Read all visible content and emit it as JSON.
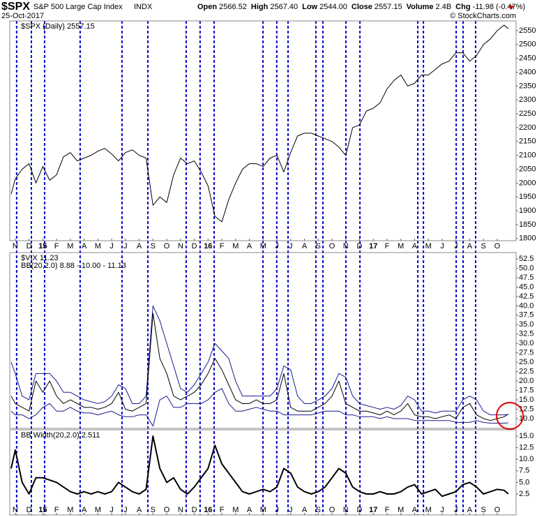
{
  "header": {
    "symbol": "$SPX",
    "name": "S&P 500 Large Cap Index",
    "exchange": "INDX",
    "date": "25-Oct-2017",
    "quote": [
      {
        "label": "Open",
        "value": "2566.52"
      },
      {
        "label": "High",
        "value": "2567.40"
      },
      {
        "label": "Low",
        "value": "2544.00"
      },
      {
        "label": "Close",
        "value": "2557.15"
      },
      {
        "label": "Volume",
        "value": "2.4B"
      },
      {
        "label": "Chg",
        "value": "-11.98 (-0.47%)"
      }
    ],
    "copyright": "© StockCharts.com"
  },
  "chart_data": [
    {
      "type": "line",
      "legend": [
        "$SPX (Daily) 2557.15"
      ],
      "x": [
        -0.3,
        0,
        0.5,
        1,
        1.5,
        2,
        2.5,
        3,
        3.5,
        4,
        4.5,
        5,
        5.5,
        6,
        6.5,
        7,
        7.5,
        8,
        8.5,
        9,
        9.5,
        10,
        10.5,
        11,
        11.5,
        12,
        12.5,
        13,
        13.5,
        14,
        14.5,
        15,
        15.5,
        16,
        16.5,
        17,
        17.5,
        18,
        18.5,
        19,
        19.5,
        20,
        20.5,
        21,
        21.5,
        22,
        22.5,
        23,
        23.5,
        24,
        24.5,
        25,
        25.5,
        26,
        26.5,
        27,
        27.5,
        28,
        28.5,
        29,
        29.5,
        30,
        30.5,
        31,
        31.5,
        32,
        32.5,
        33,
        33.5,
        34,
        34.5,
        35,
        35.5,
        35.8
      ],
      "series": [
        {
          "color": "#000000",
          "linewidth": 1,
          "values": [
            1960,
            2015,
            2050,
            2070,
            2000,
            2060,
            2010,
            2030,
            2095,
            2110,
            2080,
            2090,
            2100,
            2115,
            2125,
            2105,
            2080,
            2110,
            2120,
            2100,
            2090,
            1920,
            1950,
            1930,
            2030,
            2090,
            2070,
            2080,
            2040,
            1990,
            1880,
            1860,
            1940,
            2000,
            2050,
            2070,
            2070,
            2060,
            2090,
            2100,
            2040,
            2110,
            2170,
            2180,
            2180,
            2170,
            2160,
            2150,
            2130,
            2100,
            2200,
            2210,
            2260,
            2270,
            2290,
            2340,
            2370,
            2390,
            2350,
            2360,
            2390,
            2390,
            2410,
            2430,
            2440,
            2470,
            2470,
            2440,
            2460,
            2500,
            2520,
            2550,
            2570,
            2557.15
          ]
        }
      ],
      "xlim": [
        -0.4,
        36.37
      ],
      "ylim": [
        1792,
        2585
      ],
      "xticks": [
        {
          "value": 0,
          "label": "N"
        },
        {
          "value": 1,
          "label": "D"
        },
        {
          "value": 2,
          "label": "15"
        },
        {
          "value": 3,
          "label": "F"
        },
        {
          "value": 4,
          "label": "M"
        },
        {
          "value": 5,
          "label": "A"
        },
        {
          "value": 6,
          "label": "M"
        },
        {
          "value": 7,
          "label": "J"
        },
        {
          "value": 8,
          "label": "J"
        },
        {
          "value": 9,
          "label": "A"
        },
        {
          "value": 10,
          "label": "S"
        },
        {
          "value": 11,
          "label": "O"
        },
        {
          "value": 12,
          "label": "N"
        },
        {
          "value": 13,
          "label": "D"
        },
        {
          "value": 14,
          "label": "16"
        },
        {
          "value": 15,
          "label": "F"
        },
        {
          "value": 16,
          "label": "M"
        },
        {
          "value": 17,
          "label": "A"
        },
        {
          "value": 18,
          "label": "M"
        },
        {
          "value": 19,
          "label": "J"
        },
        {
          "value": 20,
          "label": "J"
        },
        {
          "value": 21,
          "label": "A"
        },
        {
          "value": 22,
          "label": "S"
        },
        {
          "value": 23,
          "label": "O"
        },
        {
          "value": 24,
          "label": "N"
        },
        {
          "value": 25,
          "label": "D"
        },
        {
          "value": 26,
          "label": "17"
        },
        {
          "value": 27,
          "label": "F"
        },
        {
          "value": 28,
          "label": "M"
        },
        {
          "value": 29,
          "label": "A"
        },
        {
          "value": 30,
          "label": "M"
        },
        {
          "value": 31,
          "label": "J"
        },
        {
          "value": 32,
          "label": "J"
        },
        {
          "value": 33,
          "label": "A"
        },
        {
          "value": 34,
          "label": "S"
        },
        {
          "value": 35,
          "label": "O"
        }
      ],
      "yticks": [
        1800,
        1850,
        1900,
        1950,
        2000,
        2050,
        2100,
        2150,
        2200,
        2250,
        2300,
        2350,
        2400,
        2450,
        2500,
        2550
      ],
      "vlines": [
        0.1,
        1.17,
        2.13,
        4.71,
        7.75,
        9.63,
        12.41,
        13.42,
        14.44,
        17.99,
        18.99,
        19.81,
        21.83,
        22.34,
        24.01,
        25.03,
        29.23,
        29.64,
        32.02,
        32.52,
        33.43
      ],
      "vline_color": "#0000cc",
      "grid": false
    },
    {
      "type": "line",
      "legend": [
        "$VIX 11.23",
        "BB(20,2.0) 8.88 - 10.00 - 11.13"
      ],
      "x": [
        -0.3,
        0,
        0.5,
        1,
        1.5,
        2,
        2.5,
        3,
        3.5,
        4,
        4.5,
        5,
        5.5,
        6,
        6.5,
        7,
        7.5,
        8,
        8.5,
        9,
        9.5,
        10,
        10.5,
        11,
        11.5,
        12,
        12.5,
        13,
        13.5,
        14,
        14.5,
        15,
        15.5,
        16,
        16.5,
        17,
        17.5,
        18,
        18.5,
        19,
        19.5,
        20,
        20.5,
        21,
        21.5,
        22,
        22.5,
        23,
        23.5,
        24,
        24.5,
        25,
        25.5,
        26,
        26.5,
        27,
        27.5,
        28,
        28.5,
        29,
        29.5,
        30,
        30.5,
        31,
        31.5,
        32,
        32.5,
        33,
        33.5,
        34,
        34.5,
        35,
        35.5,
        35.8
      ],
      "series": [
        {
          "color": "#1a1a8c",
          "linewidth": 1,
          "values": [
            25,
            22,
            16,
            15,
            22,
            22,
            22,
            20,
            17,
            17,
            16,
            15,
            14.5,
            14,
            14.5,
            16,
            19,
            18,
            14,
            14,
            16,
            40,
            36,
            30,
            24,
            18,
            17,
            19,
            22,
            25,
            30,
            28,
            26,
            20,
            16,
            16,
            16,
            16,
            16,
            18,
            24,
            23,
            16,
            14,
            14,
            15,
            16,
            18,
            22,
            21,
            16,
            14,
            13.5,
            13,
            12.5,
            13,
            12.5,
            13.5,
            16,
            15,
            12,
            12,
            11.5,
            12,
            12,
            12,
            15,
            16,
            15,
            12,
            11,
            11,
            11,
            11.13
          ]
        },
        {
          "color": "#1a1a8c",
          "linewidth": 1,
          "values": [
            12,
            11,
            11,
            10,
            11,
            13,
            14,
            12,
            12,
            13,
            12,
            11.5,
            11.5,
            11,
            11.5,
            12,
            11,
            10.5,
            10.5,
            11,
            11,
            8,
            15,
            16,
            13,
            13,
            14,
            14,
            14,
            15,
            17,
            18,
            14,
            12,
            12,
            12.5,
            13,
            12.5,
            12,
            12,
            11,
            11,
            11,
            11,
            11,
            11.5,
            12,
            12,
            12,
            11,
            11,
            10.5,
            10.5,
            10.5,
            10,
            10.5,
            10,
            10,
            10,
            9.5,
            9.5,
            9.5,
            9.5,
            9.5,
            9.5,
            9,
            9,
            9,
            9.5,
            9,
            8.8,
            8.8,
            8.8,
            8.88
          ]
        },
        {
          "color": "#000000",
          "linewidth": 1,
          "values": [
            16,
            14,
            13,
            12,
            20,
            17,
            20,
            16,
            14,
            15,
            14,
            13,
            13,
            12.5,
            13,
            14,
            17,
            12.5,
            12,
            13,
            14,
            38,
            26,
            22,
            16,
            15,
            16,
            17,
            19,
            22,
            26,
            23,
            19,
            15,
            14,
            14,
            15,
            14,
            14,
            15,
            22,
            13,
            12,
            12,
            12,
            13,
            14,
            16,
            20,
            14,
            13,
            12,
            12,
            11.5,
            11,
            12,
            11,
            12,
            14,
            11,
            10.5,
            10.5,
            10,
            10.5,
            11,
            10,
            13,
            14,
            11,
            10,
            9.5,
            10,
            10.5,
            11.23
          ]
        }
      ],
      "xlim": [
        -0.4,
        36.37
      ],
      "ylim": [
        7.4,
        54.17
      ],
      "yticks": [
        {
          "value": 10,
          "label": "10.0"
        },
        {
          "value": 12.5,
          "label": "12.5"
        },
        {
          "value": 15,
          "label": "15.0"
        },
        {
          "value": 17.5,
          "label": "17.5"
        },
        {
          "value": 20,
          "label": "20.0"
        },
        {
          "value": 22.5,
          "label": "22.5"
        },
        {
          "value": 25,
          "label": "25.0"
        },
        {
          "value": 27.5,
          "label": "27.5"
        },
        {
          "value": 30,
          "label": "30.0"
        },
        {
          "value": 32.5,
          "label": "32.5"
        },
        {
          "value": 35,
          "label": "35.0"
        },
        {
          "value": 37.5,
          "label": "37.5"
        },
        {
          "value": 40,
          "label": "40.0"
        },
        {
          "value": 42.5,
          "label": "42.5"
        },
        {
          "value": 45,
          "label": "45.0"
        },
        {
          "value": 47.5,
          "label": "47.5"
        },
        {
          "value": 50,
          "label": "50.0"
        },
        {
          "value": 52.5,
          "label": "52.5"
        }
      ],
      "grid": false
    },
    {
      "type": "line",
      "legend": [
        "BB Width(20,2.0) 2.511"
      ],
      "x": [
        -0.3,
        0,
        0.5,
        1,
        1.5,
        2,
        2.5,
        3,
        3.5,
        4,
        4.5,
        5,
        5.5,
        6,
        6.5,
        7,
        7.5,
        8,
        8.5,
        9,
        9.5,
        10,
        10.5,
        11,
        11.5,
        12,
        12.5,
        13,
        13.5,
        14,
        14.5,
        15,
        15.5,
        16,
        16.5,
        17,
        17.5,
        18,
        18.5,
        19,
        19.5,
        20,
        20.5,
        21,
        21.5,
        22,
        22.5,
        23,
        23.5,
        24,
        24.5,
        25,
        25.5,
        26,
        26.5,
        27,
        27.5,
        28,
        28.5,
        29,
        29.5,
        30,
        30.5,
        31,
        31.5,
        32,
        32.5,
        33,
        33.5,
        34,
        34.5,
        35,
        35.5,
        35.8
      ],
      "series": [
        {
          "color": "#000000",
          "linewidth": 2,
          "values": [
            8,
            12,
            5,
            2.5,
            6,
            6,
            5.5,
            5,
            4,
            3,
            2.5,
            3,
            2.5,
            3,
            2.5,
            3,
            5,
            4,
            3,
            2.5,
            3.5,
            15,
            8,
            5,
            6,
            3.5,
            2.5,
            4,
            6,
            8,
            13,
            9,
            7,
            5,
            3,
            2.5,
            3,
            3.5,
            3,
            4,
            8,
            7,
            4,
            3,
            2.5,
            3,
            4,
            6,
            8,
            7,
            4,
            3,
            2.5,
            2.5,
            3,
            2.5,
            2.5,
            3,
            4,
            4.5,
            2.5,
            3,
            3.5,
            2,
            2.5,
            3,
            4.5,
            5,
            4,
            2.5,
            3,
            3.5,
            3.3,
            2.511
          ]
        }
      ],
      "xlim": [
        -0.4,
        36.37
      ],
      "ylim": [
        -2.02,
        16.36
      ],
      "xticks": [
        {
          "value": 0,
          "label": "N"
        },
        {
          "value": 1,
          "label": "D"
        },
        {
          "value": 2,
          "label": "15"
        },
        {
          "value": 3,
          "label": "F"
        },
        {
          "value": 4,
          "label": "M"
        },
        {
          "value": 5,
          "label": "A"
        },
        {
          "value": 6,
          "label": "M"
        },
        {
          "value": 7,
          "label": "J"
        },
        {
          "value": 8,
          "label": "J"
        },
        {
          "value": 9,
          "label": "A"
        },
        {
          "value": 10,
          "label": "S"
        },
        {
          "value": 11,
          "label": "O"
        },
        {
          "value": 12,
          "label": "N"
        },
        {
          "value": 13,
          "label": "D"
        },
        {
          "value": 14,
          "label": "16"
        },
        {
          "value": 15,
          "label": "F"
        },
        {
          "value": 16,
          "label": "M"
        },
        {
          "value": 17,
          "label": "A"
        },
        {
          "value": 18,
          "label": "M"
        },
        {
          "value": 19,
          "label": "J"
        },
        {
          "value": 20,
          "label": "J"
        },
        {
          "value": 21,
          "label": "A"
        },
        {
          "value": 22,
          "label": "S"
        },
        {
          "value": 23,
          "label": "O"
        },
        {
          "value": 24,
          "label": "N"
        },
        {
          "value": 25,
          "label": "D"
        },
        {
          "value": 26,
          "label": "17"
        },
        {
          "value": 27,
          "label": "F"
        },
        {
          "value": 28,
          "label": "M"
        },
        {
          "value": 29,
          "label": "A"
        },
        {
          "value": 30,
          "label": "M"
        },
        {
          "value": 31,
          "label": "J"
        },
        {
          "value": 32,
          "label": "J"
        },
        {
          "value": 33,
          "label": "A"
        },
        {
          "value": 34,
          "label": "S"
        },
        {
          "value": 35,
          "label": "O"
        }
      ],
      "yticks": [
        {
          "value": 2.5,
          "label": "2.5"
        },
        {
          "value": 5,
          "label": "5.0"
        },
        {
          "value": 7.5,
          "label": "7.5"
        },
        {
          "value": 10,
          "label": "10.0"
        },
        {
          "value": 12.5,
          "label": "12.5"
        },
        {
          "value": 15,
          "label": "15.0"
        }
      ],
      "grid": false
    }
  ]
}
